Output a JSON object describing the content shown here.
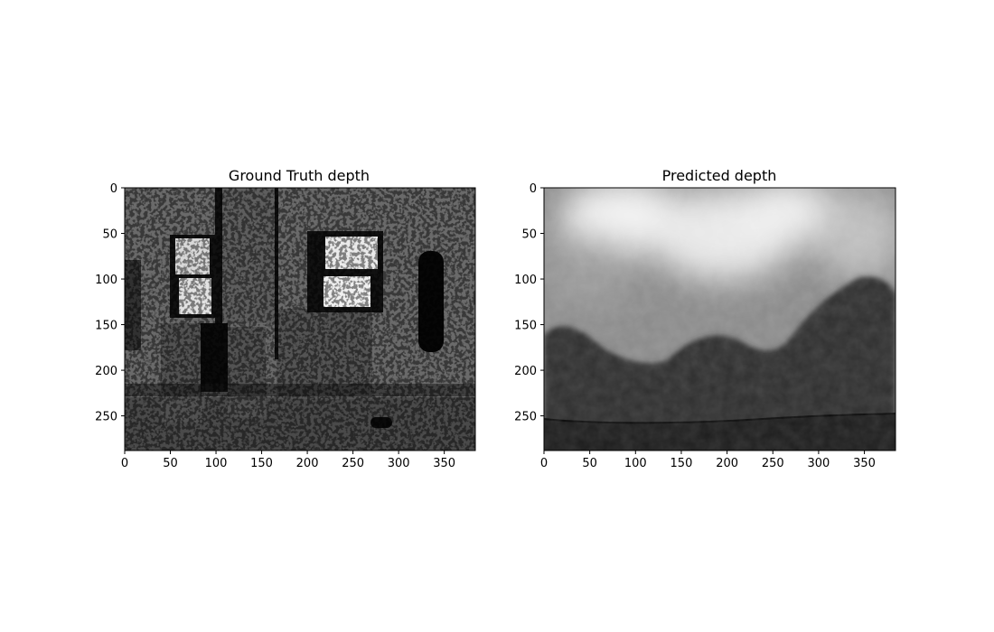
{
  "chart_data": [
    {
      "type": "heatmap",
      "title": "Ground Truth depth",
      "colormap": "gray",
      "xlim": [
        0,
        384
      ],
      "ylim": [
        288,
        0
      ],
      "xticks": [
        0,
        50,
        100,
        150,
        200,
        250,
        300,
        350
      ],
      "yticks": [
        0,
        50,
        100,
        150,
        200,
        250
      ],
      "image_width": 384,
      "image_height": 288
    },
    {
      "type": "heatmap",
      "title": "Predicted depth",
      "colormap": "gray",
      "xlim": [
        0,
        384
      ],
      "ylim": [
        288,
        0
      ],
      "xticks": [
        0,
        50,
        100,
        150,
        200,
        250,
        300,
        350
      ],
      "yticks": [
        0,
        50,
        100,
        150,
        200,
        250
      ],
      "image_width": 384,
      "image_height": 288
    }
  ]
}
